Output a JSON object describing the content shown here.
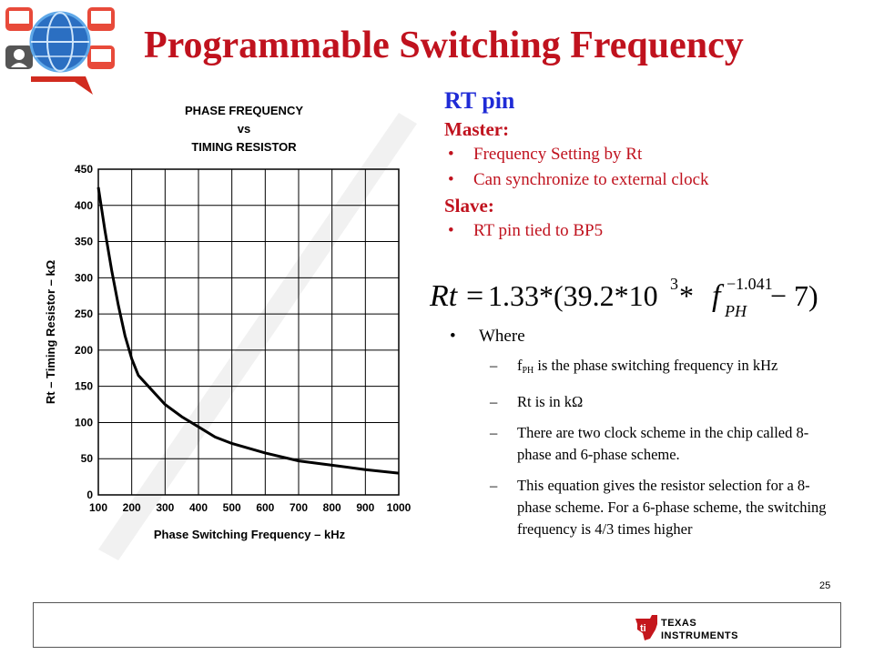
{
  "title": "Programmable Switching Frequency",
  "chart_data": {
    "type": "line",
    "title": "PHASE FREQUENCY vs TIMING RESISTOR",
    "title_lines": [
      "PHASE FREQUENCY",
      "vs",
      "TIMING RESISTOR"
    ],
    "xlabel": "Phase Switching Frequency – kHz",
    "ylabel": "Rt – Timing Resistor – kΩ",
    "xlim": [
      100,
      1000
    ],
    "ylim": [
      0,
      450
    ],
    "xticks": [
      100,
      200,
      300,
      400,
      500,
      600,
      700,
      800,
      900,
      1000
    ],
    "yticks": [
      0,
      50,
      100,
      150,
      200,
      250,
      300,
      350,
      400,
      450
    ],
    "grid": true,
    "series": [
      {
        "x": [
          100,
          120,
          140,
          160,
          180,
          200,
          220,
          250,
          300,
          350,
          400,
          450,
          500,
          600,
          700,
          800,
          900,
          1000
        ],
        "y": [
          425,
          365,
          310,
          262,
          220,
          188,
          165,
          150,
          125,
          108,
          94,
          80,
          71,
          58,
          47,
          41,
          35,
          30
        ]
      }
    ]
  },
  "rt_heading": "RT pin",
  "master_label": "Master:",
  "master_bullets": [
    "Frequency Setting by Rt",
    "Can synchronize to external clock"
  ],
  "slave_label": "Slave:",
  "slave_bullets": [
    "RT pin tied to BP5"
  ],
  "equation": {
    "lhs": "Rt",
    "eq": "=",
    "rhs_a": "1.33*(39.2*10",
    "exp_3": "3",
    "rhs_b": " * ",
    "f": "f",
    "f_sub": "PH",
    "exp_f": "−1.041",
    "rhs_c": " − 7)"
  },
  "where": {
    "heading": "Where",
    "item1_f": "f",
    "item1_sub": "PH",
    "item1_rest": " is the phase switching frequency in kHz",
    "item2": "Rt is in kΩ",
    "item3": "There are two clock scheme in the chip called 8-phase and 6-phase scheme.",
    "item4": "This equation gives the resistor selection for a 8-phase scheme. For a 6-phase scheme, the switching frequency is 4/3 times higher"
  },
  "page_number": "25",
  "footer_logo": {
    "line1": "Texas",
    "line2": "Instruments"
  },
  "colors": {
    "title_red": "#c0121e",
    "heading_blue": "#1f2bd6",
    "ti_red": "#c4161c"
  },
  "icons": [
    "network-globe-logo-icon",
    "ti-logo-icon"
  ]
}
